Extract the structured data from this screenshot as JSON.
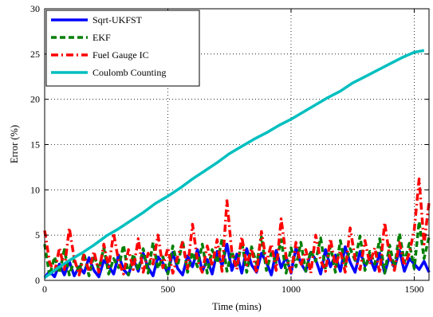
{
  "chart_data": {
    "type": "line",
    "title": "",
    "xlabel": "Time (mins)",
    "ylabel": "Error (%)",
    "xlim": [
      0,
      1560
    ],
    "ylim": [
      0,
      30
    ],
    "xticks": [
      0,
      500,
      1000,
      1500
    ],
    "yticks": [
      0,
      5,
      10,
      15,
      20,
      25,
      30
    ],
    "grid": true,
    "legend_position": "top-left",
    "series": [
      {
        "name": "Sqrt-UKFST",
        "color": "#0000ff",
        "style": "solid",
        "x": [
          0,
          20,
          40,
          60,
          80,
          100,
          120,
          140,
          160,
          180,
          200,
          220,
          240,
          260,
          280,
          300,
          320,
          340,
          360,
          380,
          400,
          420,
          440,
          460,
          480,
          500,
          520,
          540,
          560,
          580,
          600,
          620,
          640,
          660,
          680,
          700,
          720,
          740,
          760,
          780,
          800,
          820,
          840,
          860,
          880,
          900,
          920,
          940,
          960,
          980,
          1000,
          1020,
          1040,
          1060,
          1080,
          1100,
          1120,
          1140,
          1160,
          1180,
          1200,
          1220,
          1240,
          1260,
          1280,
          1300,
          1320,
          1340,
          1360,
          1380,
          1400,
          1420,
          1440,
          1460,
          1480,
          1500,
          1520,
          1540,
          1560
        ],
        "values": [
          0.3,
          1.0,
          0.4,
          1.8,
          0.6,
          2.1,
          0.5,
          1.5,
          0.8,
          2.5,
          1.1,
          0.4,
          2.2,
          1.6,
          0.7,
          2.8,
          1.2,
          0.6,
          2.4,
          1.0,
          3.0,
          1.4,
          0.5,
          2.6,
          1.9,
          0.8,
          3.1,
          1.3,
          0.6,
          2.7,
          1.5,
          3.4,
          1.0,
          2.3,
          0.7,
          3.2,
          1.6,
          4.0,
          1.1,
          2.9,
          0.8,
          3.5,
          1.7,
          0.9,
          3.0,
          2.0,
          0.6,
          3.3,
          1.4,
          2.6,
          0.8,
          3.6,
          1.9,
          1.0,
          3.1,
          2.3,
          0.7,
          3.4,
          1.5,
          2.8,
          1.0,
          3.7,
          2.0,
          0.9,
          3.2,
          1.6,
          2.5,
          1.1,
          3.0,
          0.8,
          2.7,
          1.4,
          3.3,
          1.0,
          2.4,
          1.8,
          1.2,
          2.1,
          0.9
        ]
      },
      {
        "name": "EKF",
        "color": "#007f00",
        "style": "dashed",
        "x": [
          0,
          20,
          40,
          60,
          80,
          100,
          120,
          140,
          160,
          180,
          200,
          220,
          240,
          260,
          280,
          300,
          320,
          340,
          360,
          380,
          400,
          420,
          440,
          460,
          480,
          500,
          520,
          540,
          560,
          580,
          600,
          620,
          640,
          660,
          680,
          700,
          720,
          740,
          760,
          780,
          800,
          820,
          840,
          860,
          880,
          900,
          920,
          940,
          960,
          980,
          1000,
          1020,
          1040,
          1060,
          1080,
          1100,
          1120,
          1140,
          1160,
          1180,
          1200,
          1220,
          1240,
          1260,
          1280,
          1300,
          1320,
          1340,
          1360,
          1380,
          1400,
          1420,
          1440,
          1460,
          1480,
          1500,
          1520,
          1540,
          1560
        ],
        "values": [
          4.0,
          0.5,
          2.6,
          0.8,
          3.4,
          0.6,
          2.2,
          1.0,
          3.0,
          0.5,
          2.8,
          1.2,
          3.6,
          0.7,
          2.4,
          1.4,
          3.9,
          0.6,
          2.9,
          1.1,
          3.5,
          0.8,
          4.2,
          1.3,
          2.6,
          0.7,
          3.8,
          1.6,
          4.4,
          0.9,
          3.1,
          1.5,
          4.0,
          0.8,
          3.4,
          1.9,
          4.6,
          1.0,
          3.2,
          1.4,
          4.3,
          0.9,
          3.7,
          1.8,
          4.8,
          1.1,
          3.0,
          2.0,
          4.5,
          0.8,
          3.6,
          1.5,
          4.2,
          1.0,
          3.3,
          2.1,
          4.7,
          1.2,
          3.8,
          0.9,
          4.4,
          1.6,
          3.5,
          2.2,
          4.9,
          1.1,
          3.2,
          1.8,
          4.6,
          0.8,
          3.9,
          1.4,
          5.2,
          2.0,
          4.1,
          1.3,
          6.5,
          2.4,
          4.8
        ]
      },
      {
        "name": "Fuel Gauge IC",
        "color": "#ff0000",
        "style": "dashdot",
        "x": [
          0,
          20,
          40,
          60,
          80,
          100,
          120,
          140,
          160,
          180,
          200,
          220,
          240,
          260,
          280,
          300,
          320,
          340,
          360,
          380,
          400,
          420,
          440,
          460,
          480,
          500,
          520,
          540,
          560,
          580,
          600,
          620,
          640,
          660,
          680,
          700,
          720,
          740,
          760,
          780,
          800,
          820,
          840,
          860,
          880,
          900,
          920,
          940,
          960,
          980,
          1000,
          1020,
          1040,
          1060,
          1080,
          1100,
          1120,
          1140,
          1160,
          1180,
          1200,
          1220,
          1240,
          1260,
          1280,
          1300,
          1320,
          1340,
          1360,
          1380,
          1400,
          1420,
          1440,
          1460,
          1480,
          1500,
          1520,
          1540,
          1560
        ],
        "values": [
          5.5,
          2.0,
          0.8,
          3.6,
          1.2,
          5.8,
          2.4,
          0.6,
          2.8,
          1.0,
          3.2,
          0.9,
          4.0,
          1.5,
          5.2,
          2.1,
          0.7,
          3.4,
          1.2,
          4.6,
          0.9,
          3.0,
          1.8,
          5.0,
          1.4,
          3.6,
          0.8,
          2.6,
          4.2,
          1.3,
          6.2,
          2.2,
          0.9,
          3.8,
          1.6,
          4.5,
          1.0,
          8.8,
          3.0,
          1.2,
          4.8,
          1.7,
          3.5,
          0.8,
          5.4,
          2.0,
          4.0,
          1.1,
          6.8,
          2.6,
          0.9,
          4.2,
          1.6,
          3.4,
          0.8,
          5.0,
          2.2,
          1.0,
          4.6,
          1.5,
          3.3,
          0.9,
          5.8,
          2.4,
          1.2,
          4.4,
          1.8,
          3.6,
          0.8,
          6.4,
          2.6,
          1.1,
          4.2,
          1.6,
          3.0,
          5.6,
          11.2,
          4.0,
          8.6
        ]
      },
      {
        "name": "Coulomb Counting",
        "color": "#00bfbf",
        "style": "solid",
        "x": [
          0,
          50,
          100,
          150,
          200,
          250,
          300,
          350,
          400,
          450,
          500,
          550,
          600,
          650,
          700,
          750,
          800,
          850,
          900,
          950,
          1000,
          1050,
          1100,
          1150,
          1200,
          1250,
          1300,
          1350,
          1400,
          1450,
          1500,
          1540
        ],
        "values": [
          0.3,
          1.3,
          2.2,
          3.0,
          3.9,
          4.9,
          5.7,
          6.6,
          7.5,
          8.5,
          9.3,
          10.2,
          11.2,
          12.1,
          13.0,
          14.0,
          14.8,
          15.6,
          16.3,
          17.1,
          17.8,
          18.6,
          19.4,
          20.2,
          20.9,
          21.8,
          22.5,
          23.2,
          23.9,
          24.6,
          25.2,
          25.4
        ]
      }
    ]
  }
}
